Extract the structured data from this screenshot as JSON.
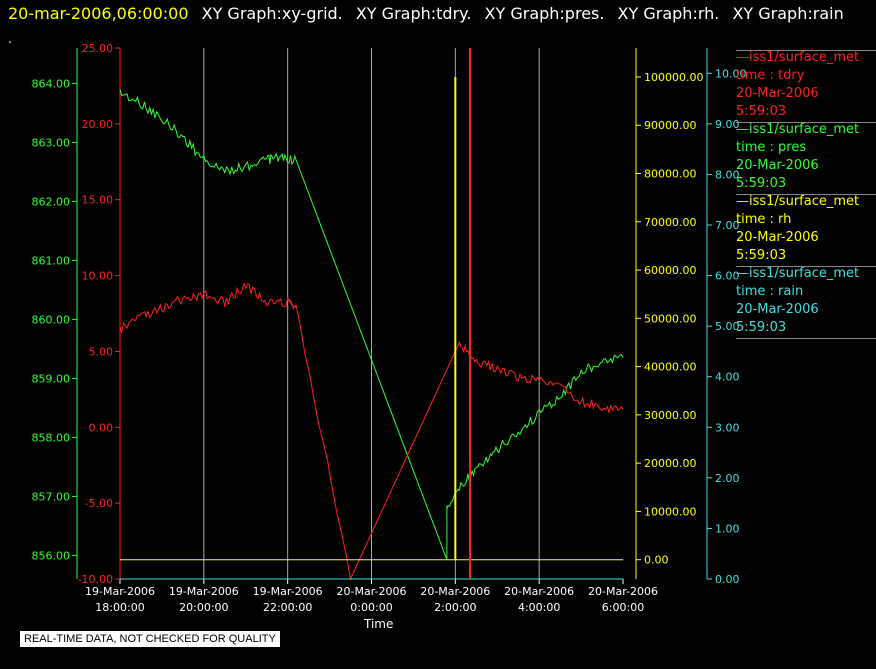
{
  "header": {
    "timestamp": "20-mar-2006,06:00:00",
    "graphs": [
      "XY Graph:xy-grid.",
      "XY Graph:tdry.",
      "XY Graph:pres.",
      "XY Graph:rh.",
      "XY Graph:rain"
    ],
    "subline": "."
  },
  "footer": {
    "quality_note": "REAL-TIME DATA, NOT CHECKED FOR QUALITY",
    "x_axis_label": "Time"
  },
  "colors": {
    "tdry": "#ff2020",
    "pres": "#30ff30",
    "rh": "#ffff00",
    "rain": "#40e0e0",
    "grid": "#aaaaaa",
    "timestamp": "#ffff00",
    "text": "#ffffff"
  },
  "legend": [
    {
      "line": "iss1/surface_met",
      "var": "time : tdry",
      "date": "20-Mar-2006",
      "time": "5:59:03",
      "color": "#ff2020"
    },
    {
      "line": "iss1/surface_met",
      "var": "time : pres",
      "date": "20-Mar-2006",
      "time": "5:59:03",
      "color": "#30ff30"
    },
    {
      "line": "iss1/surface_met",
      "var": "time : rh",
      "date": "20-Mar-2006",
      "time": "5:59:03",
      "color": "#ffff00"
    },
    {
      "line": "iss1/surface_met",
      "var": "time : rain",
      "date": "20-Mar-2006",
      "time": "5:59:03",
      "color": "#40e0e0"
    }
  ],
  "chart_data": {
    "type": "line",
    "xlabel": "Time",
    "x_ticks": [
      {
        "date": "19-Mar-2006",
        "time": "18:00:00"
      },
      {
        "date": "19-Mar-2006",
        "time": "20:00:00"
      },
      {
        "date": "19-Mar-2006",
        "time": "22:00:00"
      },
      {
        "date": "20-Mar-2006",
        "time": "0:00:00"
      },
      {
        "date": "20-Mar-2006",
        "time": "2:00:00"
      },
      {
        "date": "20-Mar-2006",
        "time": "4:00:00"
      },
      {
        "date": "20-Mar-2006",
        "time": "6:00:00"
      }
    ],
    "x_range_hours": [
      -6,
      6
    ],
    "grid": true,
    "axes": {
      "pres": {
        "ticks": [
          "864.00",
          "863.00",
          "862.00",
          "861.00",
          "860.00",
          "859.00",
          "858.00",
          "857.00",
          "856.00"
        ],
        "range": [
          855.6,
          864.6
        ]
      },
      "tdry": {
        "ticks": [
          "25.00",
          "20.00",
          "15.00",
          "10.00",
          "5.00",
          "0.00",
          "-5.00",
          "-10.00"
        ],
        "range": [
          -10,
          25
        ]
      },
      "rh": {
        "ticks": [
          "100000.00",
          "90000.00",
          "80000.00",
          "70000.00",
          "60000.00",
          "50000.00",
          "40000.00",
          "30000.00",
          "20000.00",
          "10000.00",
          "0.00"
        ],
        "range": [
          -4000,
          106000
        ]
      },
      "rain": {
        "ticks": [
          "10.00",
          "9.00",
          "8.00",
          "7.00",
          "6.00",
          "5.00",
          "4.00",
          "3.00",
          "2.00",
          "1.00",
          "0.00"
        ],
        "range": [
          0,
          10.5
        ]
      }
    },
    "series": [
      {
        "name": "iss1/surface_met time : pres",
        "axis": "pres",
        "x": [
          -6,
          -5.5,
          -5,
          -4.5,
          -4,
          -3.5,
          -3,
          -2.5,
          -2.2,
          -1.8,
          1.8,
          1.8,
          2.2,
          2.6,
          3.0,
          3.5,
          4.0,
          4.5,
          5.0,
          5.5,
          6.0
        ],
        "y": [
          863.85,
          863.65,
          863.4,
          863.1,
          862.7,
          862.5,
          862.6,
          862.7,
          862.75,
          862.7,
          855.95,
          856.85,
          857.25,
          857.5,
          857.8,
          858.1,
          858.4,
          858.7,
          859.1,
          859.3,
          859.35
        ]
      },
      {
        "name": "iss1/surface_met time : tdry",
        "axis": "tdry",
        "x": [
          -6,
          -5.5,
          -5,
          -4.5,
          -4,
          -3.5,
          -3,
          -2.5,
          -2,
          -1.8,
          -0.5,
          2.1,
          2.5,
          3.0,
          3.5,
          4.0,
          4.5,
          5.0,
          5.5,
          6.0
        ],
        "y": [
          6.5,
          7.2,
          7.8,
          8.5,
          8.8,
          8.2,
          9.3,
          8.3,
          8.2,
          8.0,
          -10.0,
          5.5,
          4.3,
          3.8,
          3.3,
          3.2,
          2.8,
          1.7,
          1.3,
          1.2
        ]
      },
      {
        "name": "iss1/surface_met time : rh",
        "axis": "rh",
        "x": [
          -6,
          6
        ],
        "y": [
          0,
          0
        ],
        "spikes": [
          {
            "x": 2.0,
            "y": 100000
          },
          {
            "x": 2.35,
            "y": 100000
          }
        ]
      },
      {
        "name": "iss1/surface_met time : rain",
        "axis": "rain",
        "x": [
          -6,
          6
        ],
        "y": [
          0,
          0
        ]
      }
    ]
  }
}
